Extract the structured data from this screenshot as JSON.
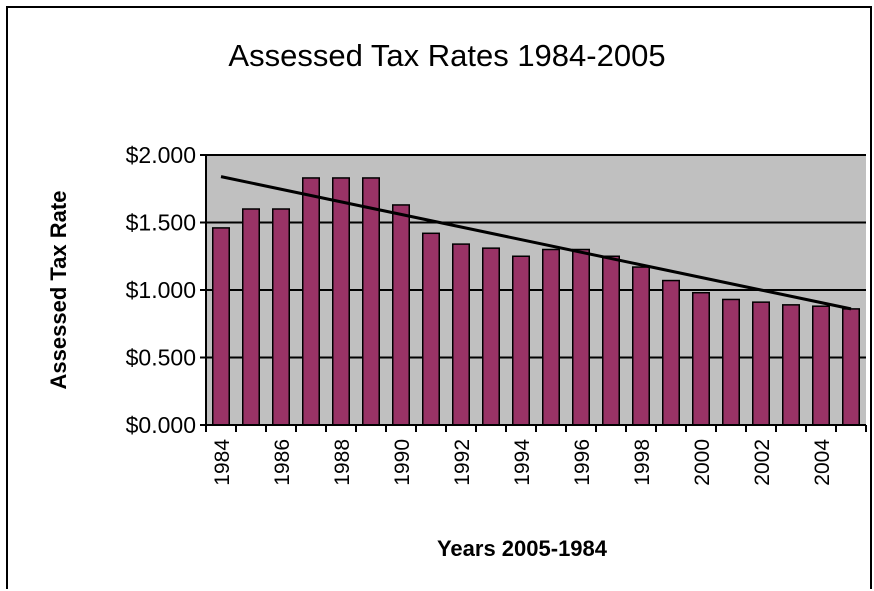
{
  "chart_data": {
    "type": "bar",
    "title": "Assessed Tax Rates 1984-2005",
    "xlabel": "Years 2005-1984",
    "ylabel": "Assessed Tax Rate",
    "categories": [
      "1984",
      "1985",
      "1986",
      "1987",
      "1988",
      "1989",
      "1990",
      "1991",
      "1992",
      "1993",
      "1994",
      "1995",
      "1996",
      "1997",
      "1998",
      "1999",
      "2000",
      "2001",
      "2002",
      "2003",
      "2004",
      "2005"
    ],
    "x_tick_labels": [
      "1984",
      "1986",
      "1988",
      "1990",
      "1992",
      "1994",
      "1996",
      "1998",
      "2000",
      "2002",
      "2004"
    ],
    "y_tick_labels": [
      "$0.000",
      "$0.500",
      "$1.000",
      "$1.500",
      "$2.000"
    ],
    "y_ticks": [
      0,
      0.5,
      1.0,
      1.5,
      2.0
    ],
    "ylim": [
      0,
      2.0
    ],
    "values": [
      1.46,
      1.6,
      1.6,
      1.83,
      1.83,
      1.83,
      1.63,
      1.42,
      1.34,
      1.31,
      1.25,
      1.3,
      1.3,
      1.25,
      1.17,
      1.07,
      0.98,
      0.93,
      0.91,
      0.89,
      0.88,
      0.86
    ],
    "trendline": {
      "type": "linear-trend",
      "start": 1.84,
      "end": 0.86
    },
    "grid": true,
    "legend": "none",
    "colors": {
      "bar": "#993366",
      "plot_background": "#c0c0c0",
      "gridline": "#000000",
      "trendline": "#000000"
    }
  }
}
